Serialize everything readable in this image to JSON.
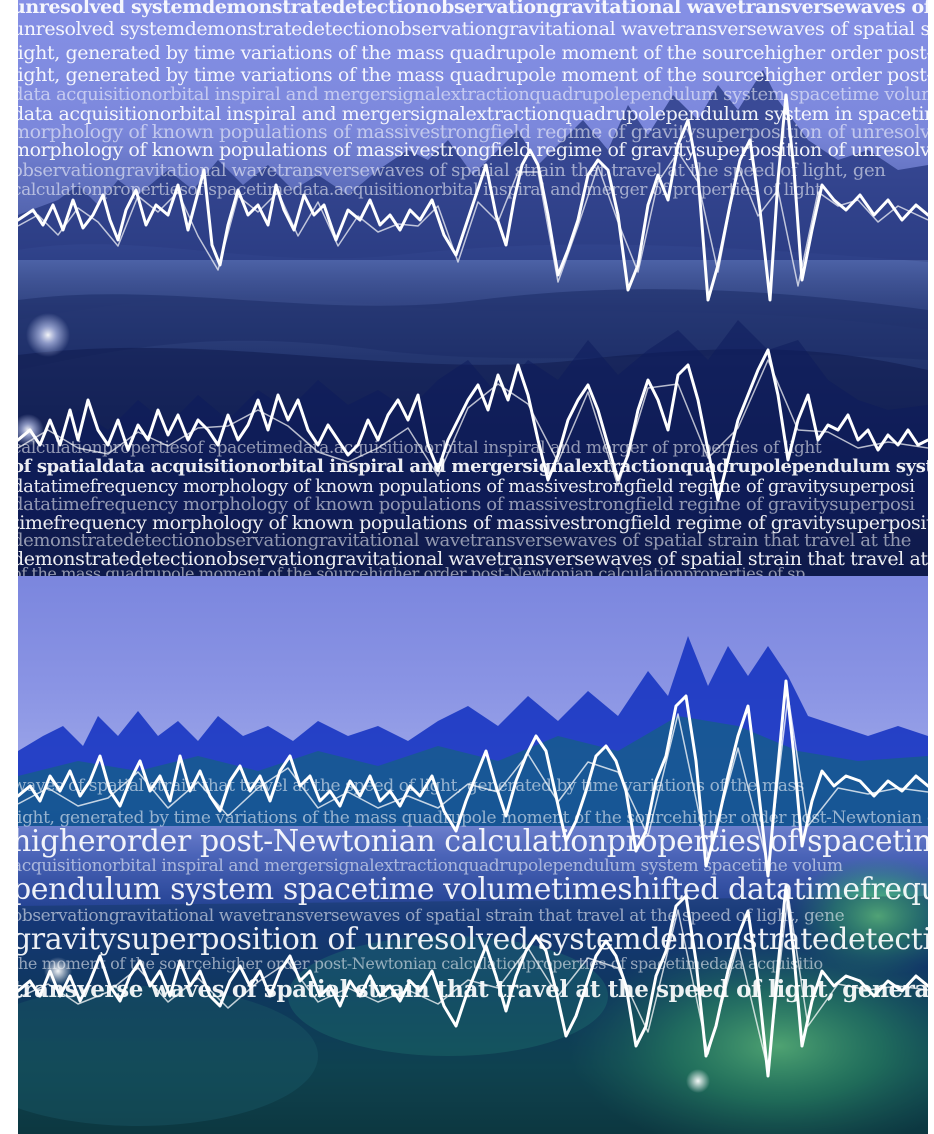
{
  "artwork": {
    "colors": {
      "periwinkle": "#7a86e0",
      "lavender_sky": "#9aa2e8",
      "deep_water": "#1a2a6a",
      "navy": "#0b1550",
      "royal_blue": "#1f3bc8",
      "teal": "#2a8f86",
      "green": "#3fbf6a",
      "white": "#ffffff"
    },
    "top_panel": {
      "text_lines": [
        "unresolved systemdemonstratedetectionobservationgravitational wavetransversewaves of spatial stra",
        "light, generated by time variations of the mass quadrupole moment of the sourcehigher order post-Newtonian ca",
        "data acquisitionorbital inspiral and mergersignalextractionquadrupolependulum system spacetime volume",
        "data acquisitionorbital inspiral and mergersignalextractionquadrupolependulum system in spacetime volum",
        "morphology of known populations of massivestrongfield regime of gravitysuperposition of unresolved sys",
        "observationgravitational wavetransversewaves of spatial strain that travel at the speed of light, gen",
        "calculationpropertiesof spacetimedata.acquisitionorbital inspiral and merger of properties of light",
        "of spatialdata acquisitionorbital inspiral and mergersignalextractionquadrupolependulum system spa",
        "datatimefrequency morphology of known populations of massivestrongfield regime of gravitysuperposi",
        "timefrequency morphology of known populations of massivestrongfield regime of gravitysuperposition",
        "demonstratedetectionobservationgravitational wavetransversewaves of spatial strain that travel at the",
        "demonstratedetectionobservationgravitational wavetransversewaves of spatial strain that travel at the sp",
        "of the mass quadrupole moment of the sourcehigher order post-Newtonian calculationproperties of sp"
      ]
    },
    "bottom_panel": {
      "text_lines": [
        "waves of spatial strain that travel at the speed of light, generated by time variations of the mass",
        "light, generated by time variations of the mass quadrupole moment of the sourcehigher order post-Newtonian c",
        "higherorder post-Newtonian calculationproperties of spacetimedata.",
        "acquisitionorbital inspiral and mergersignalextractionquadrupolependulum system spacetime volum",
        "pendulum system spacetime volumetimeshifted datatimefrequency mo",
        "observationgravitational wavetransversewaves of spatial strain that travel at the speed of light, gene",
        "gravitysuperposition of unresolved systemdemonstratedetectionobserv",
        "the moment of the sourcehigher order post-Newtonian calculationproperties of spacetimedata acquisitio",
        "transverse waves of spatial strain that travel at the speed of light, generated by time variations of the mass quadr"
      ]
    }
  }
}
